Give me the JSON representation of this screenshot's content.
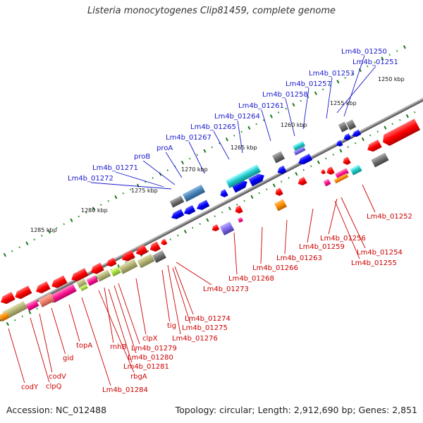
{
  "title": "Listeria monocytogenes Clip81459, complete genome",
  "footer": {
    "accession": "Accession: NC_012488",
    "stats": "Topology: circular; Length: 2,912,690 bp; Genes: 2,851"
  },
  "colors": {
    "plus_label": "#1a1acc",
    "minus_label": "#cc0000",
    "backbone": "#888888"
  },
  "ticks": [
    "1250 kbp",
    "1255 kbp",
    "1260 kbp",
    "1265 kbp",
    "1270 kbp",
    "1275 kbp",
    "1280 kbp",
    "1285 kbp"
  ],
  "plus_labels": [
    "Lm4b_01250",
    "Lm4b_01251",
    "Lm4b_01253",
    "Lm4b_01257",
    "Lm4b_01258",
    "Lm4b_01261",
    "Lm4b_01264",
    "Lm4b_01265",
    "Lm4b_01267",
    "proA",
    "proB",
    "Lm4b_01271",
    "Lm4b_01272"
  ],
  "minus_labels": [
    "Lm4b_01252",
    "Lm4b_01256",
    "Lm4b_01254",
    "Lm4b_01259",
    "Lm4b_01255",
    "Lm4b_01263",
    "Lm4b_01266",
    "Lm4b_01268",
    "Lm4b_01273",
    "Lm4b_01274",
    "Lm4b_01275",
    "tig",
    "Lm4b_01276",
    "clpX",
    "rnhB",
    "Lm4b_01279",
    "Lm4b_01280",
    "topA",
    "Lm4b_01281",
    "rbgA",
    "gid",
    "Lm4b_01284",
    "codV",
    "clpQ",
    "codY"
  ]
}
